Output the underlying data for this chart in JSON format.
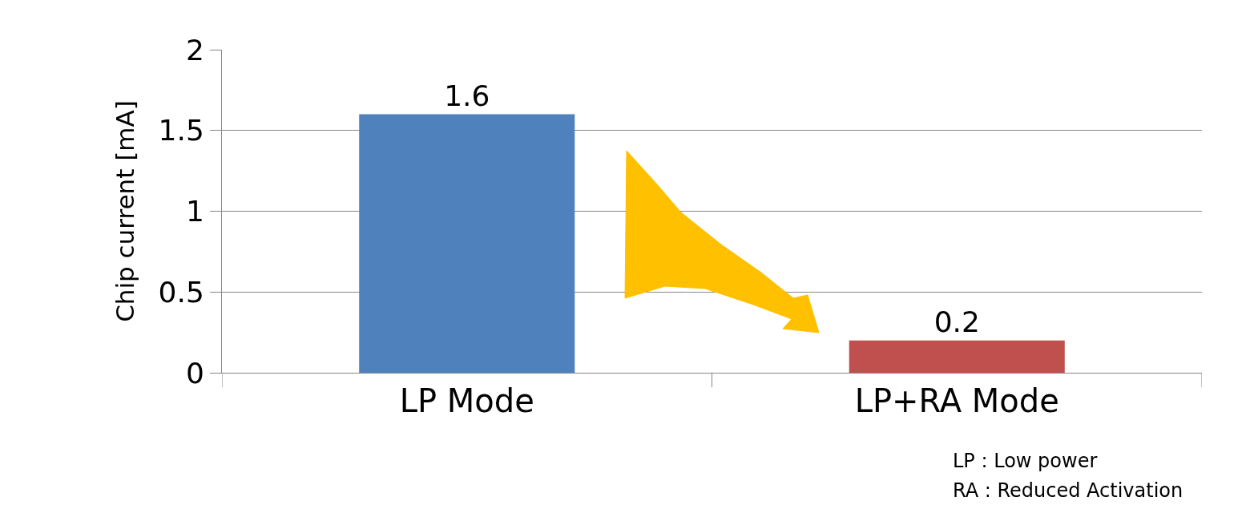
{
  "chart_data": {
    "type": "bar",
    "ylabel": "Chip current [mA]",
    "categories": [
      "LP Mode",
      "LP+RA Mode"
    ],
    "values": [
      1.6,
      0.2
    ],
    "colors": [
      "#4f81bd",
      "#c0504d"
    ],
    "ylim": [
      0,
      2
    ],
    "yticks": [
      0,
      0.5,
      1,
      1.5,
      2
    ],
    "grid": "y",
    "data_labels": true,
    "annotations": [
      "LP : Low power",
      "RA : Reduced Activation"
    ]
  }
}
